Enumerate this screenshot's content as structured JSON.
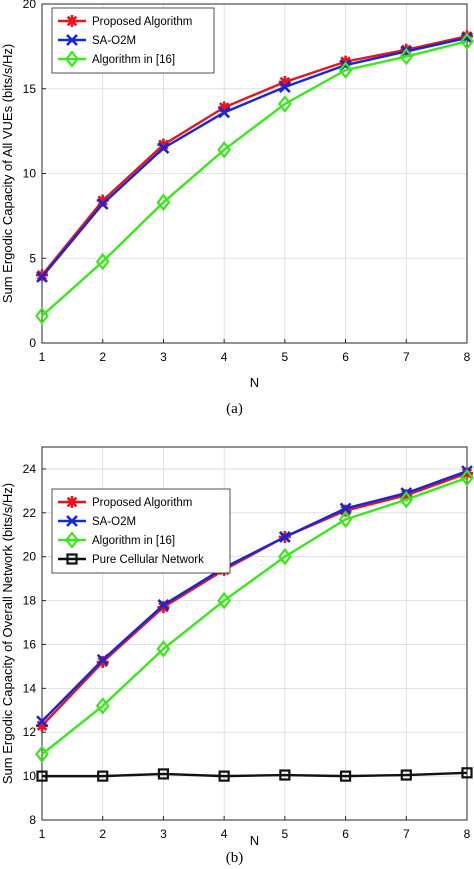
{
  "chart_data": [
    {
      "type": "line",
      "caption": "(a)",
      "xlabel": "N",
      "ylabel": "Sum Ergodic Capacity of All VUEs (bits/s/Hz)",
      "xlim": [
        1,
        8
      ],
      "ylim": [
        0,
        20
      ],
      "xticks": [
        "1",
        "2",
        "3",
        "4",
        "5",
        "6",
        "7",
        "8"
      ],
      "yticks": [
        "0",
        "5",
        "10",
        "15",
        "20"
      ],
      "grid": true,
      "legend_position": "top-left",
      "x": [
        1,
        2,
        3,
        4,
        5,
        6,
        7,
        8
      ],
      "series": [
        {
          "name": "Proposed Algorithm",
          "color": "#e8141b",
          "marker": "star",
          "values": [
            4.0,
            8.4,
            11.7,
            13.9,
            15.4,
            16.6,
            17.3,
            18.1
          ]
        },
        {
          "name": "SA-O2M",
          "color": "#1726d6",
          "marker": "x",
          "values": [
            3.9,
            8.2,
            11.5,
            13.6,
            15.1,
            16.4,
            17.2,
            18.0
          ]
        },
        {
          "name": "Algorithm in [16]",
          "color": "#39e81a",
          "marker": "diamond",
          "values": [
            1.6,
            4.8,
            8.3,
            11.4,
            14.1,
            16.1,
            16.9,
            17.8
          ]
        }
      ]
    },
    {
      "type": "line",
      "caption": "(b)",
      "xlabel": "N",
      "ylabel": "Sum Ergodic Capacity of Overall Network (bits/s/Hz)",
      "xlim": [
        1,
        8
      ],
      "ylim": [
        8,
        25
      ],
      "xticks": [
        "1",
        "2",
        "3",
        "4",
        "5",
        "6",
        "7",
        "8"
      ],
      "yticks": [
        "8",
        "10",
        "12",
        "14",
        "16",
        "18",
        "20",
        "22",
        "24"
      ],
      "grid": true,
      "legend_position": "top-left",
      "x": [
        1,
        2,
        3,
        4,
        5,
        6,
        7,
        8
      ],
      "series": [
        {
          "name": "Proposed Algorithm",
          "color": "#e8141b",
          "marker": "star",
          "values": [
            12.3,
            15.2,
            17.7,
            19.4,
            20.9,
            22.1,
            22.8,
            23.8
          ]
        },
        {
          "name": "SA-O2M",
          "color": "#1726d6",
          "marker": "x",
          "values": [
            12.5,
            15.3,
            17.8,
            19.5,
            20.9,
            22.2,
            22.9,
            23.9
          ]
        },
        {
          "name": "Algorithm in [16]",
          "color": "#39e81a",
          "marker": "diamond",
          "values": [
            11.0,
            13.2,
            15.8,
            18.0,
            20.0,
            21.7,
            22.6,
            23.6
          ]
        },
        {
          "name": "Pure Cellular Network",
          "color": "#111111",
          "marker": "square",
          "values": [
            10.0,
            10.0,
            10.1,
            10.0,
            10.05,
            10.0,
            10.05,
            10.15
          ]
        }
      ]
    }
  ]
}
